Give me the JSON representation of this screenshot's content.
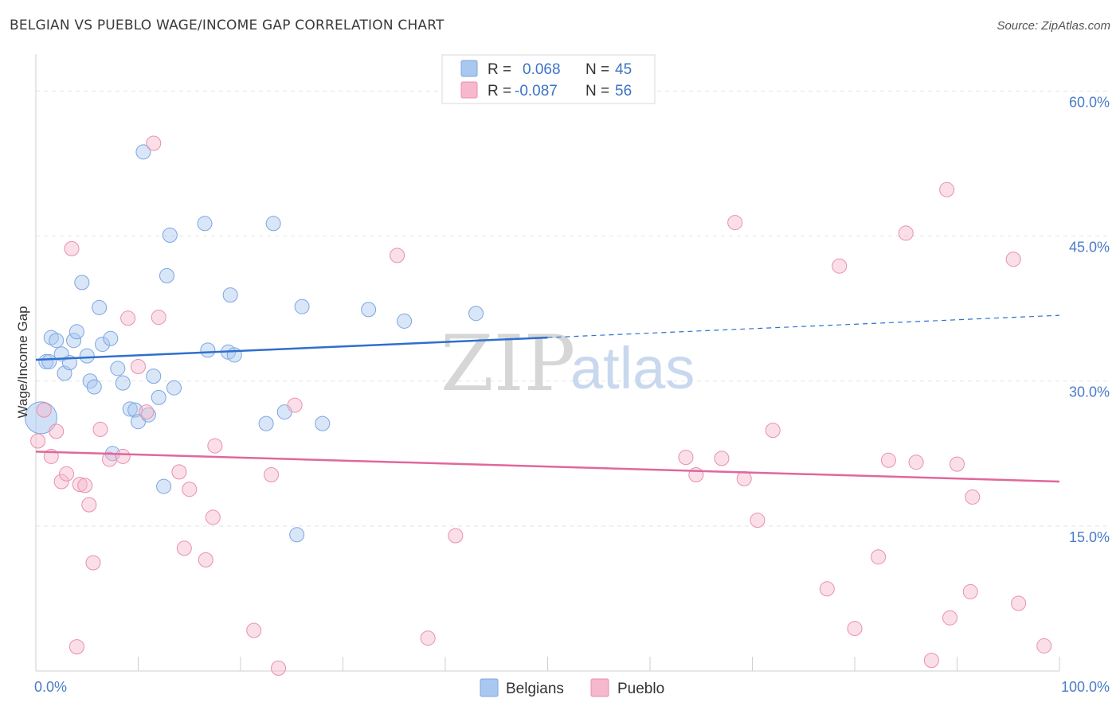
{
  "header": {
    "title": "BELGIAN VS PUEBLO WAGE/INCOME GAP CORRELATION CHART",
    "source": "Source: ZipAtlas.com"
  },
  "watermark": {
    "zip": "ZIP",
    "atlas": "atlas"
  },
  "legend": {
    "rows": [
      {
        "r_label": "R =",
        "r_value": "0.068",
        "n_label": "N =",
        "n_value": "45",
        "color": "#a9c8f0"
      },
      {
        "r_label": "R =",
        "r_value": "-0.087",
        "n_label": "N =",
        "n_value": "56",
        "color": "#f6b8cc"
      }
    ]
  },
  "chart_data": {
    "type": "scatter",
    "title": "BELGIAN VS PUEBLO WAGE/INCOME GAP CORRELATION CHART",
    "xlabel": "",
    "ylabel": "Wage/Income Gap",
    "xlim": [
      0,
      100
    ],
    "ylim": [
      0,
      63
    ],
    "x_tick_labels": [
      "0.0%",
      "100.0%"
    ],
    "y_ticks": [
      15,
      30,
      45,
      60
    ],
    "y_tick_labels": [
      "15.0%",
      "30.0%",
      "45.0%",
      "60.0%"
    ],
    "grid": true,
    "legend_position": "top-center",
    "series": [
      {
        "name": "Belgians",
        "color": "#a9c8f0",
        "stroke": "#7ba6e0",
        "trend_color": "#2f6fce",
        "trend": {
          "x0": 0,
          "y0": 32.2,
          "x1": 50,
          "y1": 34.5,
          "dash_x1": 100,
          "dash_y1": 36.8
        },
        "points": [
          [
            0.5,
            26.2
          ],
          [
            1.0,
            32.0
          ],
          [
            1.3,
            32.0
          ],
          [
            1.5,
            34.5
          ],
          [
            2.0,
            34.2
          ],
          [
            2.5,
            32.8
          ],
          [
            2.8,
            30.8
          ],
          [
            3.3,
            31.9
          ],
          [
            3.7,
            34.2
          ],
          [
            4.0,
            35.1
          ],
          [
            4.5,
            40.2
          ],
          [
            5.0,
            32.6
          ],
          [
            5.3,
            30.0
          ],
          [
            5.7,
            29.4
          ],
          [
            6.2,
            37.6
          ],
          [
            6.5,
            33.8
          ],
          [
            7.3,
            34.4
          ],
          [
            7.5,
            22.5
          ],
          [
            8.0,
            31.3
          ],
          [
            8.5,
            29.8
          ],
          [
            9.2,
            27.1
          ],
          [
            9.7,
            27.0
          ],
          [
            10.0,
            25.8
          ],
          [
            10.5,
            53.7
          ],
          [
            11.0,
            26.5
          ],
          [
            11.5,
            30.5
          ],
          [
            12.0,
            28.3
          ],
          [
            12.5,
            19.1
          ],
          [
            12.8,
            40.9
          ],
          [
            13.1,
            45.1
          ],
          [
            13.5,
            29.3
          ],
          [
            16.5,
            46.3
          ],
          [
            16.8,
            33.2
          ],
          [
            18.8,
            33.0
          ],
          [
            19.0,
            38.9
          ],
          [
            19.4,
            32.7
          ],
          [
            22.5,
            25.6
          ],
          [
            23.2,
            46.3
          ],
          [
            24.3,
            26.8
          ],
          [
            25.5,
            14.1
          ],
          [
            26.0,
            37.7
          ],
          [
            28.0,
            25.6
          ],
          [
            32.5,
            37.4
          ],
          [
            36.0,
            36.2
          ],
          [
            43.0,
            37.0
          ]
        ]
      },
      {
        "name": "Pueblo",
        "color": "#f6b8cc",
        "stroke": "#e98fac",
        "trend_color": "#e0689a",
        "trend": {
          "x0": 0,
          "y0": 22.7,
          "x1": 100,
          "y1": 19.6
        },
        "points": [
          [
            0.2,
            23.8
          ],
          [
            0.8,
            27.0
          ],
          [
            1.5,
            22.2
          ],
          [
            2.0,
            24.8
          ],
          [
            2.5,
            19.6
          ],
          [
            3.0,
            20.4
          ],
          [
            3.5,
            43.7
          ],
          [
            4.0,
            2.5
          ],
          [
            4.3,
            19.3
          ],
          [
            4.8,
            19.2
          ],
          [
            5.2,
            17.2
          ],
          [
            5.6,
            11.2
          ],
          [
            6.3,
            25.0
          ],
          [
            7.2,
            21.9
          ],
          [
            8.5,
            22.2
          ],
          [
            9.0,
            36.5
          ],
          [
            10.0,
            31.5
          ],
          [
            10.8,
            26.8
          ],
          [
            11.5,
            54.6
          ],
          [
            12.0,
            36.6
          ],
          [
            14.0,
            20.6
          ],
          [
            14.5,
            12.7
          ],
          [
            15.0,
            18.8
          ],
          [
            16.6,
            11.5
          ],
          [
            17.3,
            15.9
          ],
          [
            17.5,
            23.3
          ],
          [
            21.3,
            4.2
          ],
          [
            23.0,
            20.3
          ],
          [
            23.7,
            0.3
          ],
          [
            25.3,
            27.5
          ],
          [
            35.3,
            43.0
          ],
          [
            38.3,
            3.4
          ],
          [
            41.0,
            14.0
          ],
          [
            63.5,
            22.1
          ],
          [
            64.5,
            20.3
          ],
          [
            67.0,
            22.0
          ],
          [
            68.3,
            46.4
          ],
          [
            69.2,
            19.9
          ],
          [
            70.5,
            15.6
          ],
          [
            72.0,
            24.9
          ],
          [
            77.3,
            8.5
          ],
          [
            78.5,
            41.9
          ],
          [
            80.0,
            4.4
          ],
          [
            82.3,
            11.8
          ],
          [
            83.3,
            21.8
          ],
          [
            85.0,
            45.3
          ],
          [
            86.0,
            21.6
          ],
          [
            87.5,
            1.1
          ],
          [
            89.0,
            49.8
          ],
          [
            89.3,
            5.5
          ],
          [
            90.0,
            21.4
          ],
          [
            91.3,
            8.2
          ],
          [
            91.5,
            18.0
          ],
          [
            95.5,
            42.6
          ],
          [
            96.0,
            7.0
          ],
          [
            98.5,
            2.6
          ]
        ]
      }
    ]
  }
}
